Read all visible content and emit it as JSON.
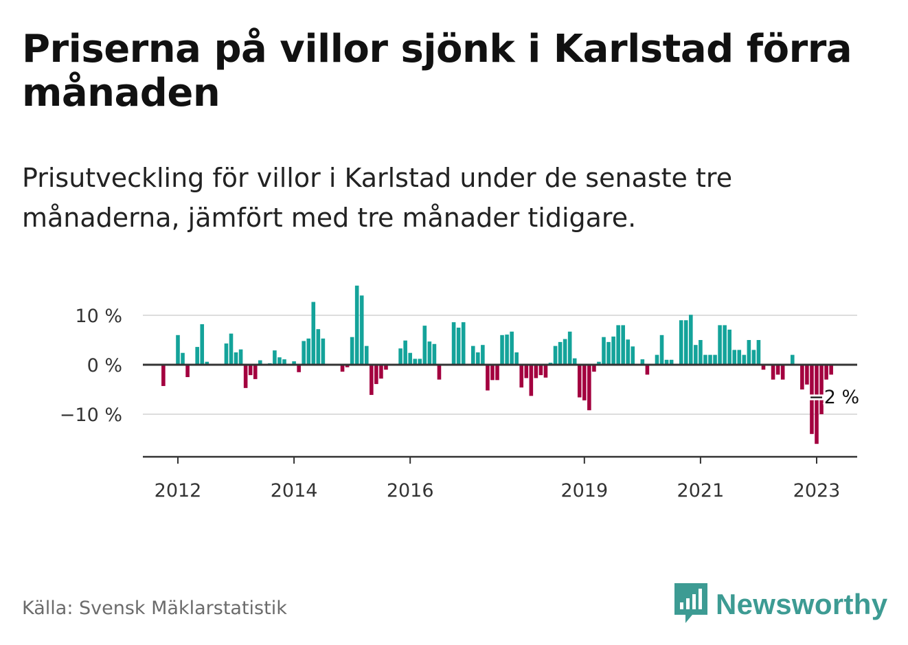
{
  "title": "Priserna på villor sjönk i Karlstad förra månaden",
  "subtitle": "Prisutveckling för villor i Karlstad under de senaste tre månaderna, jämfört med tre månader tidigare.",
  "source": "Källa: Svensk Mäklarstatistik",
  "brand": "Newsworthy",
  "colors": {
    "positive": "#14a39a",
    "negative": "#a3003f",
    "grid": "#dddddd",
    "axis": "#333333",
    "brand": "#3d9b93"
  },
  "chart_data": {
    "type": "bar",
    "y_unit": "%",
    "ylim": [
      -18,
      16
    ],
    "grid": true,
    "y_ticks": [
      {
        "value": 10,
        "label": "10 %"
      },
      {
        "value": 0,
        "label": "0 %"
      },
      {
        "value": -10,
        "label": "−10 %"
      }
    ],
    "x_ticks": [
      {
        "year": 2012,
        "label": "2012"
      },
      {
        "year": 2014,
        "label": "2014"
      },
      {
        "year": 2016,
        "label": "2016"
      },
      {
        "year": 2019,
        "label": "2019"
      },
      {
        "year": 2021,
        "label": "2021"
      },
      {
        "year": 2023,
        "label": "2023"
      }
    ],
    "start": "2011-06",
    "interval": "month",
    "values": [
      0,
      0,
      0,
      0,
      -4.3,
      0,
      0,
      6.0,
      2.4,
      -2.5,
      0,
      3.6,
      8.2,
      0.6,
      0,
      0,
      0,
      4.3,
      6.3,
      2.5,
      3.1,
      -4.7,
      -2.1,
      -2.9,
      0.9,
      0,
      0.3,
      2.9,
      1.5,
      1.1,
      0,
      0.7,
      -1.5,
      4.8,
      5.3,
      12.7,
      7.2,
      5.3,
      0,
      0,
      0,
      -1.4,
      -0.5,
      5.6,
      16.0,
      14.0,
      3.8,
      -6.1,
      -3.9,
      -2.8,
      -1.0,
      0,
      0,
      3.3,
      4.9,
      2.4,
      1.2,
      1.2,
      7.9,
      4.7,
      4.2,
      -3.0,
      0,
      0,
      8.6,
      7.5,
      8.6,
      0,
      3.8,
      2.5,
      4.0,
      -5.2,
      -3.1,
      -3.1,
      6.0,
      6.1,
      6.7,
      2.5,
      -4.6,
      -2.7,
      -6.3,
      -2.7,
      -2.1,
      -2.6,
      0.4,
      3.8,
      4.6,
      5.2,
      6.7,
      1.3,
      -6.6,
      -7.2,
      -9.2,
      -1.4,
      0.6,
      5.6,
      4.6,
      5.7,
      8.0,
      8.0,
      5.1,
      3.7,
      0,
      1.1,
      -2.0,
      0,
      2.0,
      6.0,
      1.0,
      1.0,
      0,
      9.0,
      9.0,
      10.1,
      4.0,
      5.0,
      2.0,
      2.0,
      2.0,
      8.0,
      8.0,
      7.1,
      3.0,
      3.0,
      2.0,
      5.0,
      3.0,
      5.0,
      -1.0,
      0,
      -3.0,
      -2.0,
      -3.0,
      0,
      2.0,
      0,
      -5.0,
      -4.0,
      -14.0,
      -16.0,
      -10.0,
      -3.0,
      -2.0
    ],
    "annotation": {
      "label": "−2 %",
      "index": 142
    }
  }
}
